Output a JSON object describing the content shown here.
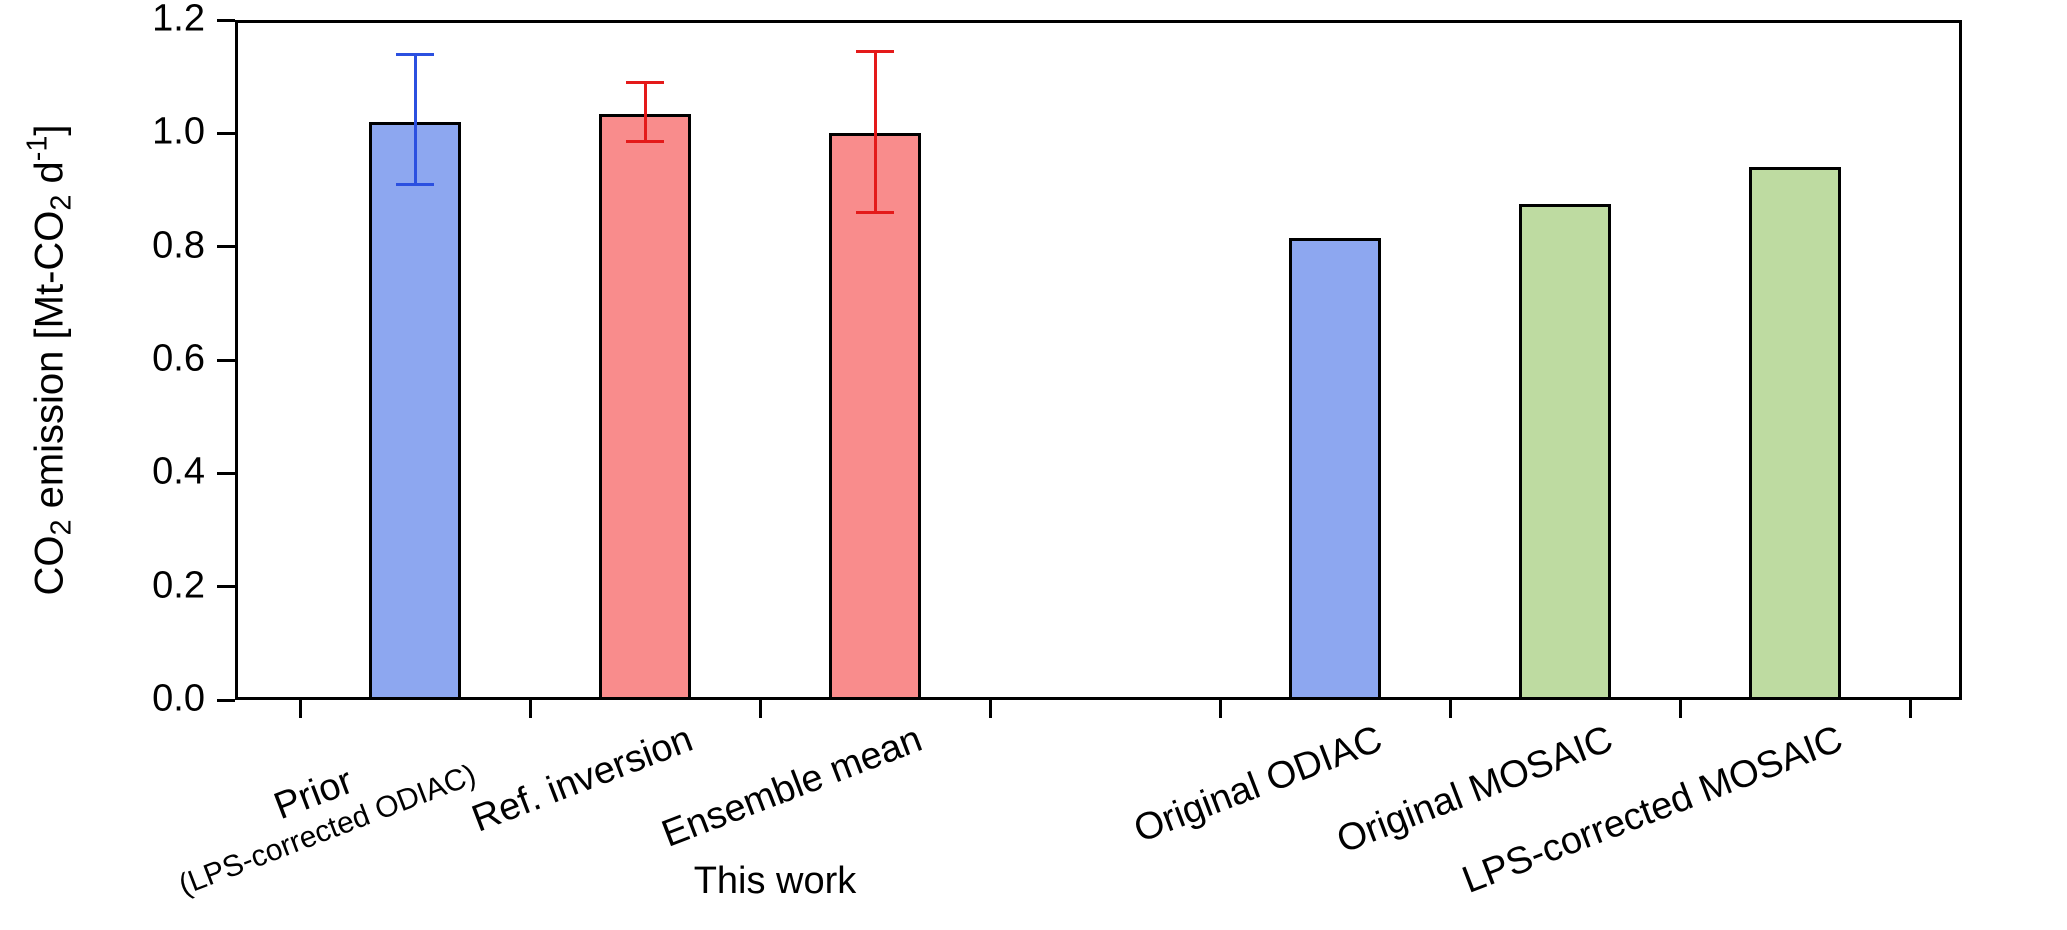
{
  "chart_data": {
    "type": "bar",
    "title": "",
    "xlabel": "",
    "ylabel": "CO2 emission [Mt-CO2 d-1]",
    "ylabel_segments": [
      {
        "text": "CO"
      },
      {
        "text": "2",
        "script": "sub"
      },
      {
        "text": " emission [Mt-CO"
      },
      {
        "text": "2",
        "script": "sub"
      },
      {
        "text": " d"
      },
      {
        "text": "-1",
        "script": "sup"
      },
      {
        "text": "]"
      }
    ],
    "ylim": [
      0.0,
      1.2
    ],
    "yticks": [
      0.0,
      0.2,
      0.4,
      0.6,
      0.8,
      1.0,
      1.2
    ],
    "grid": false,
    "legend": "none",
    "group_label": "This work",
    "bar_outline_color": "#000000",
    "background_color": "#ffffff",
    "bars": [
      {
        "label": "Prior",
        "sublabel": "(LPS-corrected ODIAC)",
        "value": 1.02,
        "err_low": 0.91,
        "err_high": 1.14,
        "color": "#8da7f0",
        "err_color": "#2b50e0",
        "slot": 1,
        "group": "This work"
      },
      {
        "label": "Ref. inversion",
        "value": 1.035,
        "err_low": 0.985,
        "err_high": 1.09,
        "color": "#f98c8c",
        "err_color": "#e41a1a",
        "slot": 2,
        "group": "This work"
      },
      {
        "label": "Ensemble mean",
        "value": 1.0,
        "err_low": 0.86,
        "err_high": 1.145,
        "color": "#f98c8c",
        "err_color": "#e41a1a",
        "slot": 3,
        "group": "This work"
      },
      {
        "label": "Original ODIAC",
        "value": 0.815,
        "color": "#8da7f0",
        "slot": 5,
        "group": "inventories"
      },
      {
        "label": "Original MOSAIC",
        "value": 0.875,
        "color": "#bedba1",
        "slot": 6,
        "group": "inventories"
      },
      {
        "label": "LPS-corrected MOSAIC",
        "value": 0.94,
        "color": "#bedba1",
        "slot": 7,
        "group": "inventories"
      }
    ]
  }
}
